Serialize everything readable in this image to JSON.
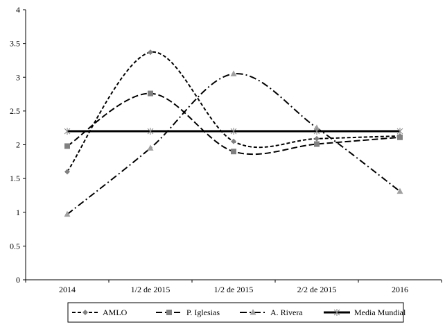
{
  "chart_data": {
    "type": "line",
    "title": "",
    "xlabel": "",
    "ylabel": "",
    "categories": [
      "2014",
      "1/2 de 2015",
      "1/2 de 2015",
      "2/2 de 2015",
      "2016"
    ],
    "ylim": [
      0,
      4
    ],
    "yticks": [
      "0",
      "0.5",
      "1",
      "1.5",
      "2",
      "2.5",
      "3",
      "3.5",
      "4"
    ],
    "grid": false,
    "legend_position": "bottom",
    "series": [
      {
        "name": "AMLO",
        "values": [
          1.6,
          3.37,
          2.05,
          2.09,
          2.13
        ],
        "color": "#000000",
        "marker": "diamond",
        "dash": "short-dash",
        "marker_color": "#808080"
      },
      {
        "name": "P. Iglesias",
        "values": [
          1.98,
          2.76,
          1.9,
          2.01,
          2.11
        ],
        "color": "#000000",
        "marker": "square",
        "dash": "long-dash",
        "marker_color": "#808080"
      },
      {
        "name": "A. Rivera",
        "values": [
          0.97,
          1.95,
          3.05,
          2.25,
          1.31
        ],
        "color": "#000000",
        "marker": "triangle",
        "dash": "dash-dot",
        "marker_color": "#a0a0a0"
      },
      {
        "name": "Media Mundial",
        "values": [
          2.2,
          2.2,
          2.2,
          2.2,
          2.2
        ],
        "color": "#000000",
        "marker": "star",
        "dash": "solid",
        "marker_color": "#808080"
      }
    ]
  }
}
